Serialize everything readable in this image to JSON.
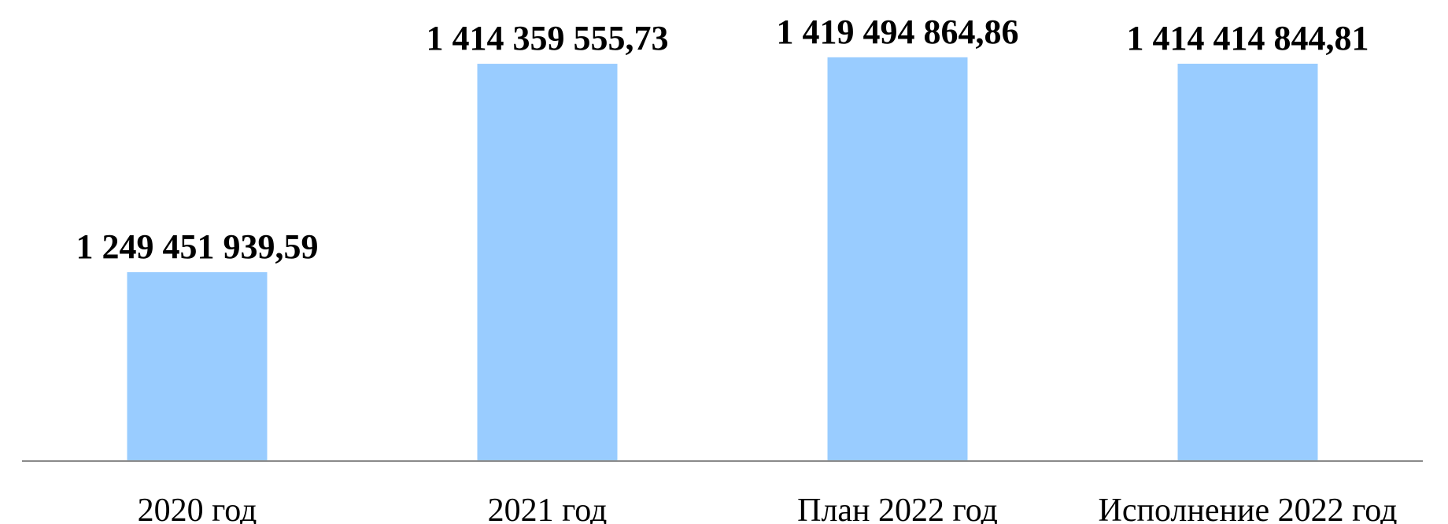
{
  "chart_data": {
    "type": "bar",
    "title": "",
    "xlabel": "",
    "ylabel": "",
    "categories": [
      "2020 год",
      "2021 год",
      "План 2022 год",
      "Исполнение 2022 год"
    ],
    "values": [
      1249451939.59,
      1414359555.73,
      1419494864.86,
      1414414844.81
    ],
    "data_labels": [
      "1 249 451 939,59",
      "1 414 359 555,73",
      "1 419 494 864,86",
      "1 414 414 844,81"
    ],
    "ylim": [
      1100000000,
      1420000000
    ],
    "grid": false,
    "legend": "none",
    "bar_color": "#99ccff",
    "axis_color": "#8a8a8a"
  }
}
